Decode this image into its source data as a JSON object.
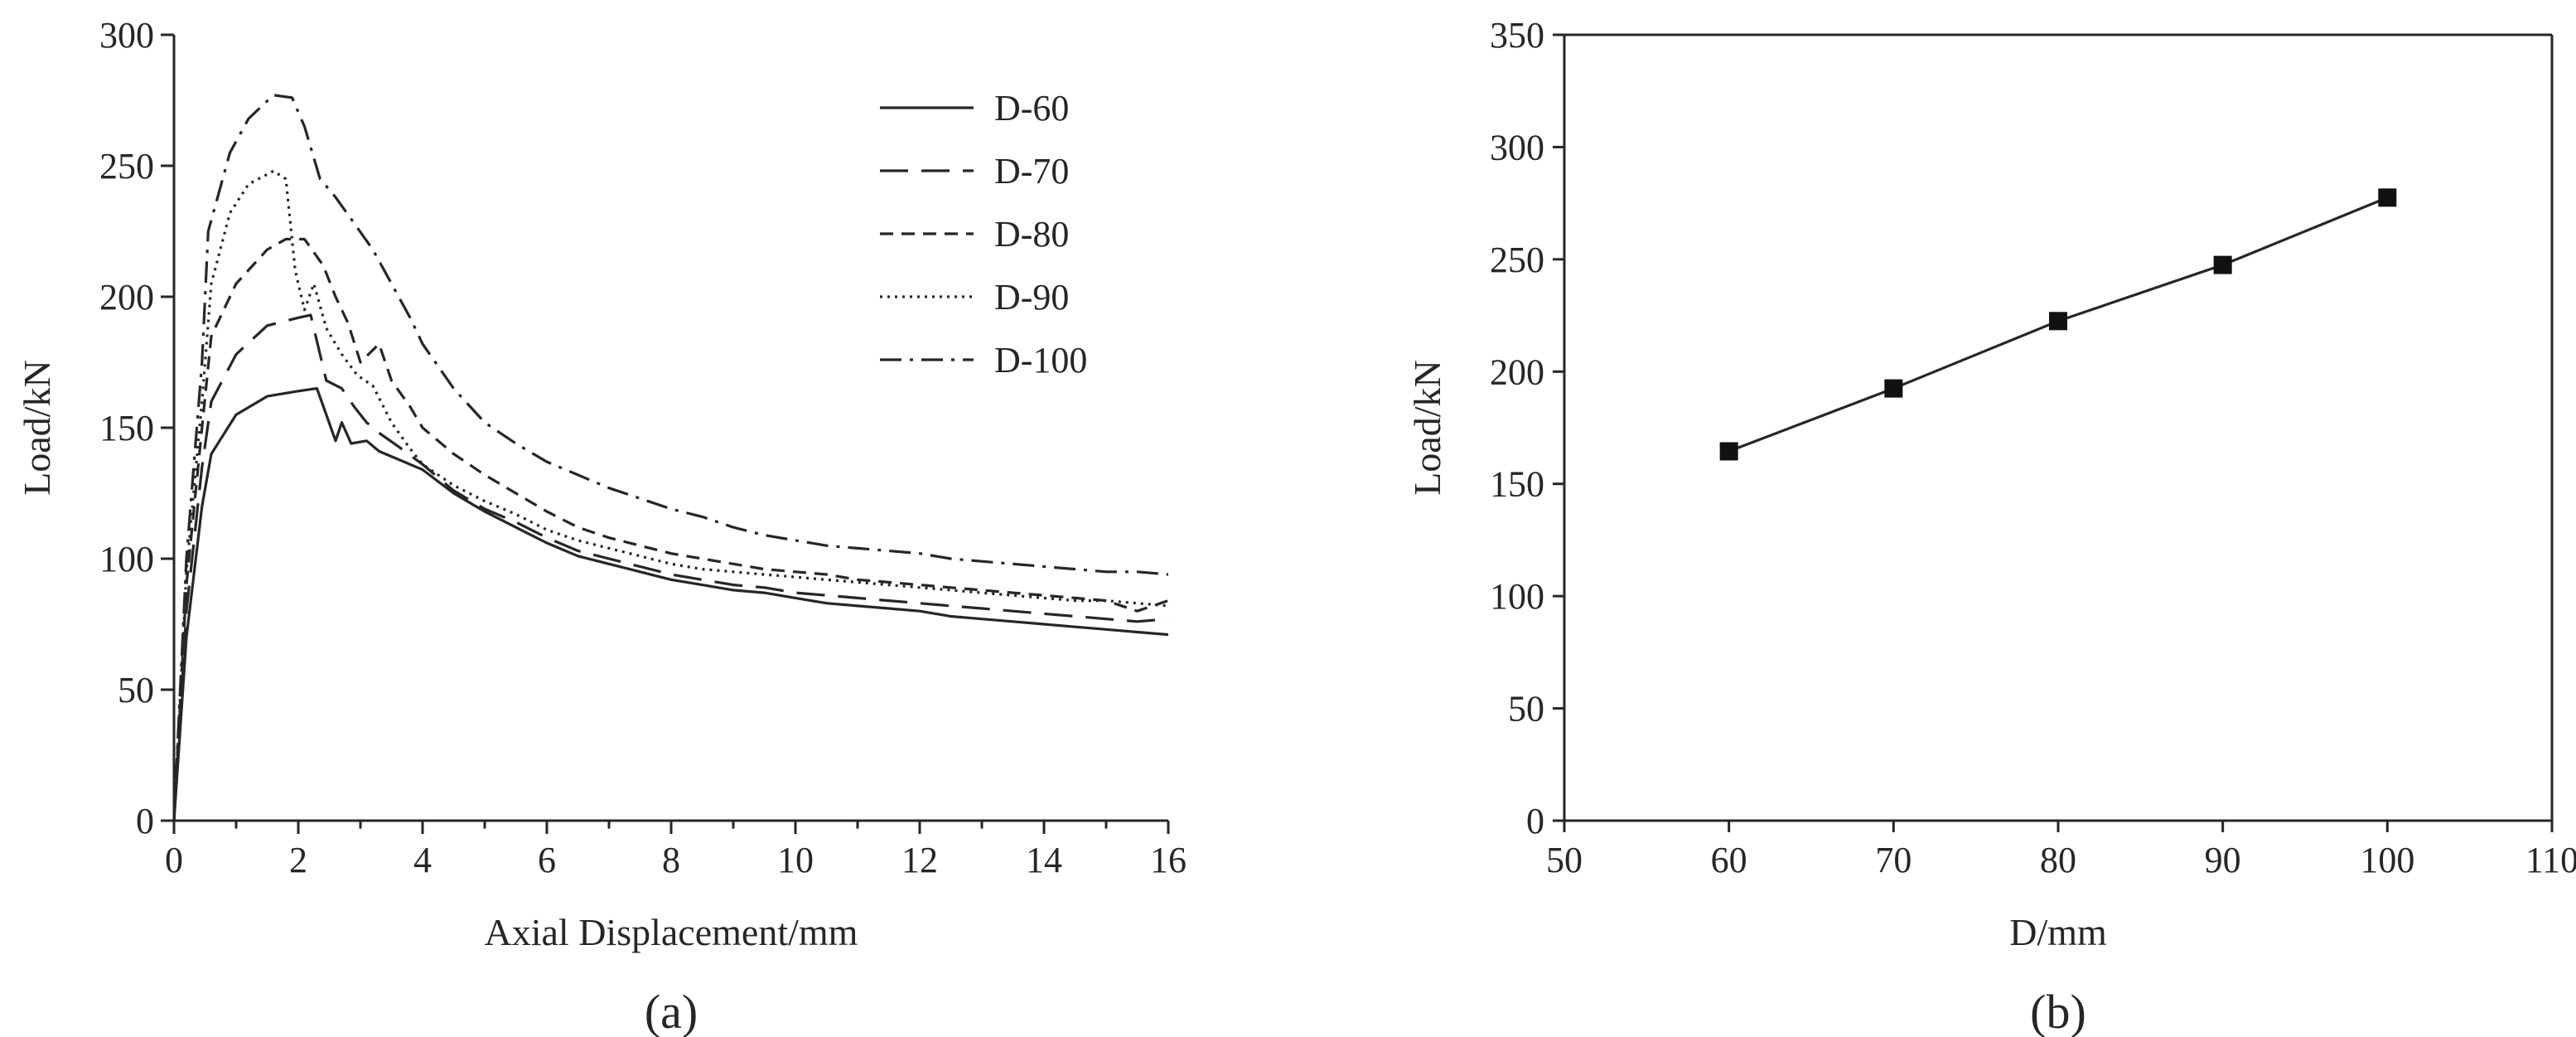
{
  "chart_data": [
    {
      "type": "line",
      "panel_label": "(a)",
      "xlabel": "Axial Displacement/mm",
      "ylabel": "Load/kN",
      "xlim": [
        0,
        16
      ],
      "ylim": [
        0,
        300
      ],
      "xticks": [
        0,
        2,
        4,
        6,
        8,
        10,
        12,
        14,
        16
      ],
      "yticks": [
        0,
        50,
        100,
        150,
        200,
        250,
        300
      ],
      "grid": false,
      "legend_position": "top-right",
      "series": [
        {
          "name": "D-60",
          "dash": "solid",
          "points": [
            [
              0,
              0
            ],
            [
              0.2,
              70
            ],
            [
              0.45,
              120
            ],
            [
              0.6,
              140
            ],
            [
              1.0,
              155
            ],
            [
              1.5,
              162
            ],
            [
              2.0,
              164
            ],
            [
              2.3,
              165
            ],
            [
              2.45,
              155
            ],
            [
              2.6,
              145
            ],
            [
              2.7,
              152
            ],
            [
              2.85,
              144
            ],
            [
              3.1,
              145
            ],
            [
              3.3,
              141
            ],
            [
              3.6,
              138
            ],
            [
              4.0,
              134
            ],
            [
              4.5,
              125
            ],
            [
              5.0,
              118
            ],
            [
              5.5,
              112
            ],
            [
              6.0,
              106
            ],
            [
              6.5,
              101
            ],
            [
              7.0,
              98
            ],
            [
              7.5,
              95
            ],
            [
              8.0,
              92
            ],
            [
              8.5,
              90
            ],
            [
              9.0,
              88
            ],
            [
              9.5,
              87
            ],
            [
              10.0,
              85
            ],
            [
              10.5,
              83
            ],
            [
              11.0,
              82
            ],
            [
              11.5,
              81
            ],
            [
              12.0,
              80
            ],
            [
              12.5,
              78
            ],
            [
              13.0,
              77
            ],
            [
              13.5,
              76
            ],
            [
              14.0,
              75
            ],
            [
              14.5,
              74
            ],
            [
              15.0,
              73
            ],
            [
              15.5,
              72
            ],
            [
              16.0,
              71
            ]
          ]
        },
        {
          "name": "D-70",
          "dash": "long-dash",
          "points": [
            [
              0,
              0
            ],
            [
              0.2,
              80
            ],
            [
              0.45,
              135
            ],
            [
              0.6,
              160
            ],
            [
              1.0,
              178
            ],
            [
              1.5,
              189
            ],
            [
              2.0,
              192
            ],
            [
              2.2,
              193
            ],
            [
              2.45,
              168
            ],
            [
              2.7,
              165
            ],
            [
              2.9,
              158
            ],
            [
              3.1,
              152
            ],
            [
              3.3,
              148
            ],
            [
              3.6,
              143
            ],
            [
              4.0,
              136
            ],
            [
              4.5,
              126
            ],
            [
              5.0,
              119
            ],
            [
              5.5,
              114
            ],
            [
              6.0,
              108
            ],
            [
              6.5,
              103
            ],
            [
              7.0,
              100
            ],
            [
              7.5,
              97
            ],
            [
              8.0,
              94
            ],
            [
              8.5,
              92
            ],
            [
              9.0,
              90
            ],
            [
              9.5,
              89
            ],
            [
              10.0,
              87
            ],
            [
              10.5,
              86
            ],
            [
              11.0,
              85
            ],
            [
              11.5,
              84
            ],
            [
              12.0,
              83
            ],
            [
              12.5,
              82
            ],
            [
              13.0,
              81
            ],
            [
              13.5,
              80
            ],
            [
              14.0,
              79
            ],
            [
              14.5,
              78
            ],
            [
              15.0,
              77
            ],
            [
              15.5,
              76
            ],
            [
              16.0,
              77
            ]
          ]
        },
        {
          "name": "D-80",
          "dash": "short-dash",
          "points": [
            [
              0,
              0
            ],
            [
              0.2,
              90
            ],
            [
              0.45,
              150
            ],
            [
              0.6,
              185
            ],
            [
              1.0,
              205
            ],
            [
              1.5,
              218
            ],
            [
              1.8,
              222
            ],
            [
              2.1,
              222
            ],
            [
              2.4,
              212
            ],
            [
              2.6,
              200
            ],
            [
              2.8,
              190
            ],
            [
              3.0,
              175
            ],
            [
              3.3,
              182
            ],
            [
              3.5,
              168
            ],
            [
              3.8,
              158
            ],
            [
              4.0,
              150
            ],
            [
              4.5,
              140
            ],
            [
              5.0,
              132
            ],
            [
              5.5,
              125
            ],
            [
              6.0,
              118
            ],
            [
              6.5,
              112
            ],
            [
              7.0,
              108
            ],
            [
              7.5,
              105
            ],
            [
              8.0,
              102
            ],
            [
              8.5,
              100
            ],
            [
              9.0,
              98
            ],
            [
              9.5,
              96
            ],
            [
              10.0,
              95
            ],
            [
              10.5,
              94
            ],
            [
              11.0,
              92
            ],
            [
              11.5,
              91
            ],
            [
              12.0,
              90
            ],
            [
              12.5,
              89
            ],
            [
              13.0,
              88
            ],
            [
              13.5,
              87
            ],
            [
              14.0,
              86
            ],
            [
              14.5,
              85
            ],
            [
              15.0,
              84
            ],
            [
              15.5,
              80
            ],
            [
              16.0,
              84
            ]
          ]
        },
        {
          "name": "D-90",
          "dash": "dotted",
          "points": [
            [
              0,
              0
            ],
            [
              0.2,
              95
            ],
            [
              0.45,
              160
            ],
            [
              0.6,
              205
            ],
            [
              0.9,
              232
            ],
            [
              1.2,
              243
            ],
            [
              1.6,
              248
            ],
            [
              1.8,
              245
            ],
            [
              1.95,
              210
            ],
            [
              2.1,
              195
            ],
            [
              2.25,
              205
            ],
            [
              2.45,
              188
            ],
            [
              2.7,
              178
            ],
            [
              2.95,
              170
            ],
            [
              3.2,
              166
            ],
            [
              3.5,
              152
            ],
            [
              3.8,
              142
            ],
            [
              4.0,
              136
            ],
            [
              4.5,
              128
            ],
            [
              5.0,
              122
            ],
            [
              5.5,
              117
            ],
            [
              6.0,
              111
            ],
            [
              6.5,
              107
            ],
            [
              7.0,
              104
            ],
            [
              7.5,
              101
            ],
            [
              8.0,
              98
            ],
            [
              8.5,
              96
            ],
            [
              9.0,
              95
            ],
            [
              9.5,
              94
            ],
            [
              10.0,
              93
            ],
            [
              10.5,
              92
            ],
            [
              11.0,
              91
            ],
            [
              11.5,
              90
            ],
            [
              12.0,
              89
            ],
            [
              12.5,
              88
            ],
            [
              13.0,
              87
            ],
            [
              13.5,
              86
            ],
            [
              14.0,
              85
            ],
            [
              14.5,
              84
            ],
            [
              15.0,
              84
            ],
            [
              15.5,
              83
            ],
            [
              16.0,
              82
            ]
          ]
        },
        {
          "name": "D-100",
          "dash": "dash-dot",
          "points": [
            [
              0,
              0
            ],
            [
              0.2,
              100
            ],
            [
              0.45,
              175
            ],
            [
              0.55,
              225
            ],
            [
              0.9,
              255
            ],
            [
              1.2,
              268
            ],
            [
              1.6,
              277
            ],
            [
              1.9,
              276
            ],
            [
              2.1,
              265
            ],
            [
              2.35,
              245
            ],
            [
              2.6,
              238
            ],
            [
              2.9,
              228
            ],
            [
              3.2,
              218
            ],
            [
              3.5,
              205
            ],
            [
              3.8,
              192
            ],
            [
              4.0,
              182
            ],
            [
              4.5,
              165
            ],
            [
              5.0,
              152
            ],
            [
              5.5,
              144
            ],
            [
              6.0,
              137
            ],
            [
              6.5,
              132
            ],
            [
              7.0,
              127
            ],
            [
              7.5,
              123
            ],
            [
              8.0,
              119
            ],
            [
              8.5,
              116
            ],
            [
              9.0,
              112
            ],
            [
              9.5,
              109
            ],
            [
              10.0,
              107
            ],
            [
              10.5,
              105
            ],
            [
              11.0,
              104
            ],
            [
              11.5,
              103
            ],
            [
              12.0,
              102
            ],
            [
              12.5,
              100
            ],
            [
              13.0,
              99
            ],
            [
              13.5,
              98
            ],
            [
              14.0,
              97
            ],
            [
              14.5,
              96
            ],
            [
              15.0,
              95
            ],
            [
              15.5,
              95
            ],
            [
              16.0,
              94
            ]
          ]
        }
      ]
    },
    {
      "type": "line",
      "panel_label": "(b)",
      "xlabel": "D/mm",
      "ylabel": "Load/kN",
      "xlim": [
        50,
        110
      ],
      "ylim": [
        0,
        350
      ],
      "xticks": [
        50,
        60,
        70,
        80,
        90,
        100,
        110
      ],
      "yticks": [
        0,
        50,
        100,
        150,
        200,
        250,
        300,
        350
      ],
      "grid": false,
      "marker": "square",
      "series": [
        {
          "x": [
            60,
            70,
            80,
            90,
            100
          ],
          "values": [
            164.5,
            192.5,
            222.5,
            247.5,
            277.5
          ]
        }
      ]
    }
  ]
}
